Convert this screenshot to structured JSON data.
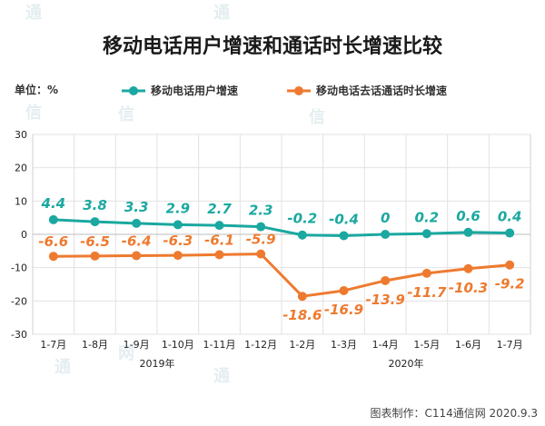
{
  "chart_data": {
    "type": "line",
    "title": "移动电话用户增速和通话时长增速比较",
    "unit_label": "单位：%",
    "categories": [
      "1-7月",
      "1-8月",
      "1-9月",
      "1-10月",
      "1-11月",
      "1-12月",
      "1-2月",
      "1-3月",
      "1-4月",
      "1-5月",
      "1-6月",
      "1-7月"
    ],
    "year_labels": [
      "2019年",
      "2020年"
    ],
    "y_ticks": [
      30,
      20,
      10,
      0,
      -10,
      -20,
      -30
    ],
    "ylim": [
      -30,
      30
    ],
    "grid": true,
    "legend_position": "top",
    "series": [
      {
        "name": "移动电话用户增速",
        "color": "#1aa8a0",
        "values": [
          4.4,
          3.8,
          3.3,
          2.9,
          2.7,
          2.3,
          -0.2,
          -0.4,
          0,
          0.2,
          0.6,
          0.4
        ],
        "labels": [
          "4.4",
          "3.8",
          "3.3",
          "2.9",
          "2.7",
          "2.3",
          "-0.2",
          "-0.4",
          "0",
          "0.2",
          "0.6",
          "0.4"
        ]
      },
      {
        "name": "移动电话去话通话时长增速",
        "color": "#ee7a2f",
        "values": [
          -6.6,
          -6.5,
          -6.4,
          -6.3,
          -6.1,
          -5.9,
          -18.6,
          -16.9,
          -13.9,
          -11.7,
          -10.3,
          -9.2
        ],
        "labels": [
          "-6.6",
          "-6.5",
          "-6.4",
          "-6.3",
          "-6.1",
          "-5.9",
          "-18.6",
          "-16.9",
          "-13.9",
          "-11.7",
          "-10.3",
          "-9.2"
        ]
      }
    ],
    "credit": "图表制作：C114通信网  2020.9.3"
  }
}
